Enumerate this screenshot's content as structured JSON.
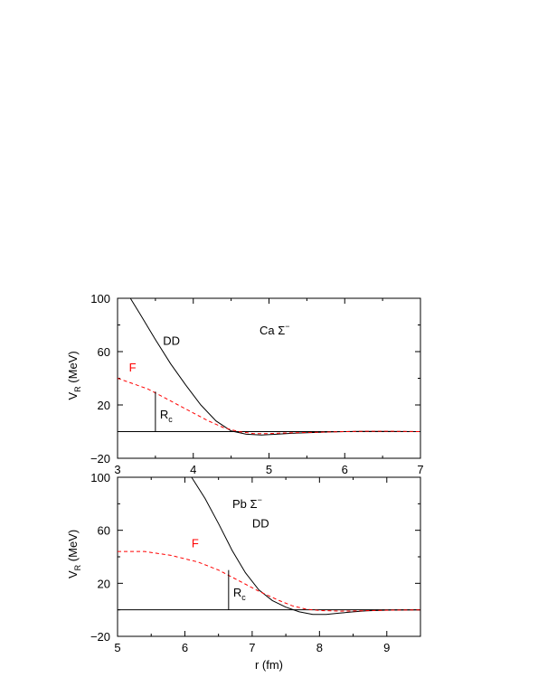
{
  "chart_data": [
    {
      "type": "line",
      "panel_label": "Ca Σ",
      "panel_label_sup": "−",
      "xlabel": "",
      "ylabel": "V",
      "ylabel_sub": "R",
      "ylabel_unit": " (MeV)",
      "xlim": [
        3,
        7
      ],
      "ylim": [
        -20,
        100
      ],
      "x_ticks": [
        "3",
        "4",
        "5",
        "6",
        "7"
      ],
      "y_ticks": [
        "−20",
        "20",
        "60",
        "100"
      ],
      "rc_label": "R",
      "rc_label_sub": "c",
      "rc": {
        "x": 3.5,
        "y_top": 30
      },
      "series": [
        {
          "name": "DD",
          "color": "#000000",
          "dash": "solid",
          "label_at": [
            3.6,
            65
          ],
          "x": [
            3.17,
            3.3,
            3.5,
            3.7,
            3.9,
            4.1,
            4.3,
            4.5,
            4.7,
            4.9,
            5.1,
            5.3,
            5.5,
            5.8,
            6.0,
            6.2,
            6.5,
            7.0
          ],
          "y": [
            100,
            88,
            69,
            51,
            35,
            20,
            8,
            0.5,
            -2,
            -2.5,
            -2,
            -1.3,
            -0.8,
            -0.3,
            0,
            0.2,
            0.2,
            0
          ]
        },
        {
          "name": "F",
          "color": "#ff0000",
          "dash": "dashed",
          "label_at": [
            3.15,
            45
          ],
          "x": [
            3.0,
            3.2,
            3.4,
            3.6,
            3.8,
            4.0,
            4.2,
            4.4,
            4.6,
            4.8,
            5.0,
            5.2,
            5.5,
            5.8,
            6.0,
            6.3,
            6.6,
            7.0
          ],
          "y": [
            40,
            36,
            32,
            26,
            20,
            14,
            8,
            3,
            0,
            -1.5,
            -1.5,
            -1,
            -0.7,
            -0.3,
            0,
            0.3,
            0.3,
            0
          ]
        }
      ]
    },
    {
      "type": "line",
      "panel_label": "Pb Σ",
      "panel_label_sup": "−",
      "xlabel": "r (fm)",
      "ylabel": "V",
      "ylabel_sub": "R",
      "ylabel_unit": " (MeV)",
      "xlim": [
        5,
        9.5
      ],
      "ylim": [
        -20,
        100
      ],
      "x_ticks": [
        "5",
        "6",
        "7",
        "8",
        "9"
      ],
      "y_ticks": [
        "−20",
        "20",
        "60",
        "100"
      ],
      "rc_label": "R",
      "rc_label_sub": "c",
      "rc": {
        "x": 6.65,
        "y_top": 30
      },
      "series": [
        {
          "name": "DD",
          "color": "#000000",
          "dash": "solid",
          "label_at": [
            7.0,
            62
          ],
          "x": [
            6.1,
            6.3,
            6.5,
            6.7,
            6.9,
            7.1,
            7.3,
            7.5,
            7.7,
            7.9,
            8.1,
            8.3,
            8.5,
            8.7,
            9.0,
            9.5
          ],
          "y": [
            100,
            84,
            65,
            45,
            28,
            15,
            7,
            2,
            -1.5,
            -3.5,
            -3.5,
            -2.5,
            -1.5,
            -0.8,
            -0.2,
            0
          ]
        },
        {
          "name": "F",
          "color": "#ff0000",
          "dash": "dashed",
          "label_at": [
            6.1,
            47
          ],
          "x": [
            5.0,
            5.4,
            5.8,
            6.2,
            6.5,
            6.8,
            7.1,
            7.4,
            7.6,
            7.8,
            8.0,
            8.3,
            8.6,
            9.0,
            9.5
          ],
          "y": [
            44,
            44,
            41,
            36,
            30,
            22,
            14,
            7,
            3,
            0.5,
            -0.5,
            -1,
            -0.8,
            -0.3,
            0
          ]
        }
      ]
    }
  ]
}
